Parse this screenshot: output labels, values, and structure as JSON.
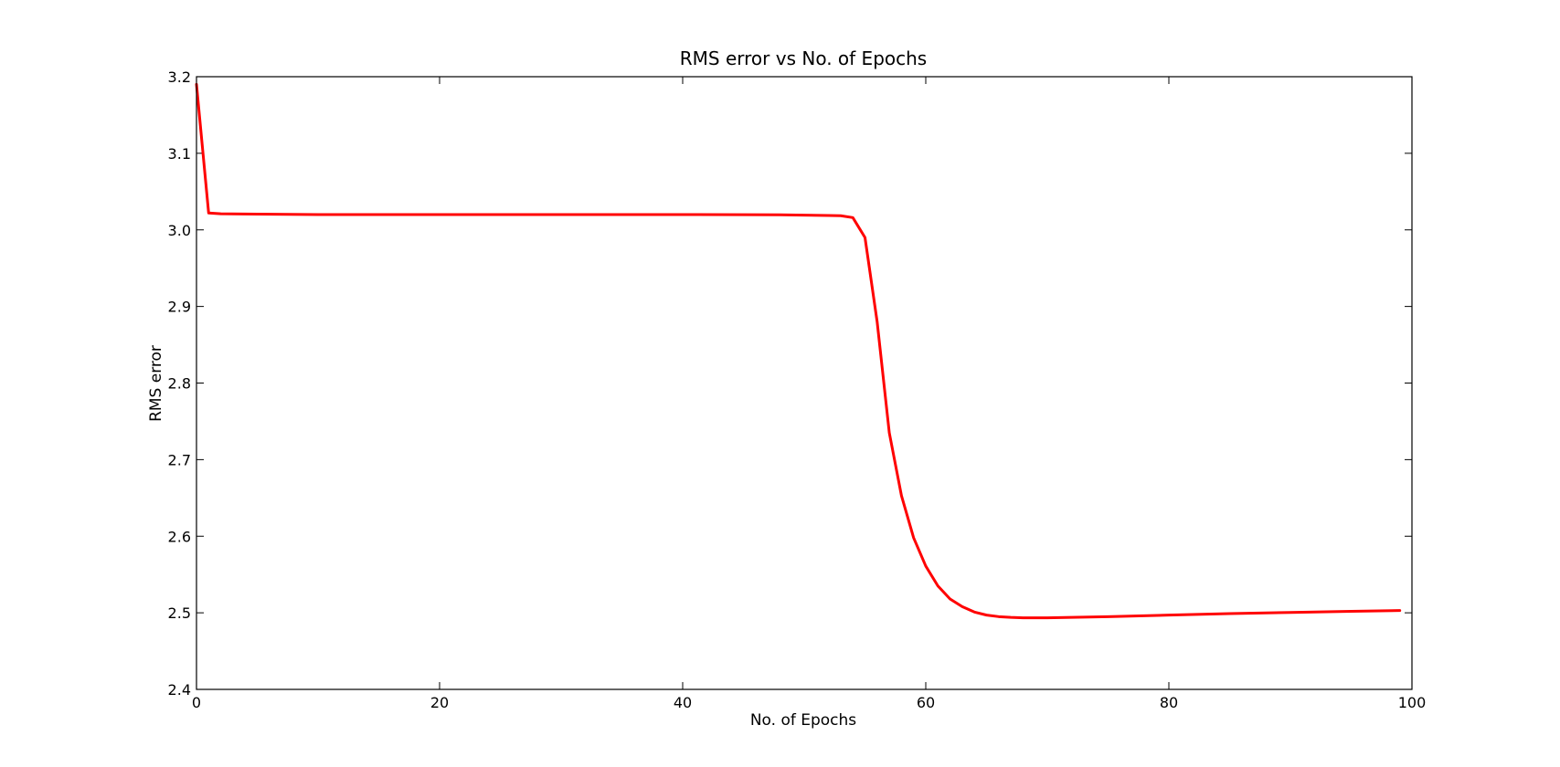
{
  "chart_data": {
    "type": "line",
    "title": "RMS error vs No. of Epochs",
    "xlabel": "No. of Epochs",
    "ylabel": "RMS error",
    "xlim": [
      0,
      100
    ],
    "ylim": [
      2.4,
      3.2
    ],
    "xticks": [
      "0",
      "20",
      "40",
      "60",
      "80",
      "100"
    ],
    "yticks": [
      "2.4",
      "2.5",
      "2.6",
      "2.7",
      "2.8",
      "2.9",
      "3.0",
      "3.1",
      "3.2"
    ],
    "grid": false,
    "legend": "none",
    "series": [
      {
        "color": "#ff0000",
        "x": [
          0,
          1,
          2,
          5,
          10,
          20,
          30,
          40,
          45,
          48,
          50,
          52,
          53,
          54,
          55,
          56,
          57,
          58,
          59,
          60,
          61,
          62,
          63,
          64,
          65,
          66,
          67,
          68,
          70,
          72,
          75,
          80,
          85,
          90,
          95,
          99
        ],
        "y": [
          3.19,
          3.022,
          3.021,
          3.0205,
          3.02,
          3.02,
          3.02,
          3.02,
          3.0198,
          3.0196,
          3.0192,
          3.0188,
          3.0185,
          3.016,
          2.99,
          2.88,
          2.735,
          2.653,
          2.598,
          2.561,
          2.535,
          2.518,
          2.508,
          2.501,
          2.497,
          2.495,
          2.494,
          2.4935,
          2.4935,
          2.494,
          2.495,
          2.497,
          2.499,
          2.5005,
          2.502,
          2.503
        ]
      }
    ]
  }
}
